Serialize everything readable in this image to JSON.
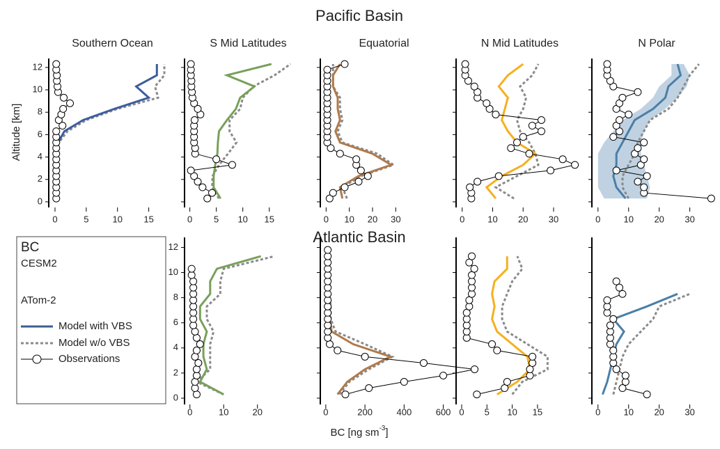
{
  "titles": {
    "top": "Pacific Basin",
    "bottom": "Atlantic Basin"
  },
  "y_label": "Altitude [km]",
  "x_label": {
    "text": "BC [ng sm",
    "sup": "-3",
    "close": "]"
  },
  "legend": {
    "heading": "BC",
    "model": "CESM2",
    "campaign": "ATom-2",
    "entries": [
      "Model with VBS",
      "Model w/o VBS",
      "Observations"
    ]
  },
  "colors": {
    "title": "#e3202b",
    "no_vbs": "#8a8a8a",
    "obs": "#000000",
    "legend_vbs": "#3a5f8f"
  },
  "obs_altitude": [
    0.3,
    0.8,
    1.3,
    1.8,
    2.3,
    2.8,
    3.3,
    3.8,
    4.3,
    4.8,
    5.3,
    5.8,
    6.3,
    6.8,
    7.3,
    7.8,
    8.3,
    8.8,
    9.3,
    9.8,
    10.3,
    10.8,
    11.3,
    11.8,
    12.3
  ],
  "model_altitude": [
    0.3,
    1.3,
    2.3,
    3.3,
    4.3,
    5.3,
    6.3,
    7.3,
    8.3,
    9.3,
    10.3,
    11.3,
    12.3
  ],
  "chart_data": [
    {
      "type": "line",
      "title": "Southern Ocean",
      "color": "#3b5da0",
      "xlim": [
        -1,
        18.5
      ],
      "xticks": [
        0,
        5,
        10,
        15
      ],
      "ylim": [
        -0.5,
        12.8
      ],
      "yticks": [
        0,
        2,
        4,
        6,
        8,
        10,
        12
      ],
      "ytick_labels": true,
      "model_vbs": [
        0.3,
        0.3,
        0.3,
        0.3,
        0.3,
        0.5,
        1.5,
        4.5,
        9.5,
        15,
        13,
        16.3,
        16.3
      ],
      "model_novbs": [
        0.3,
        0.3,
        0.3,
        0.3,
        0.3,
        0.6,
        2,
        5,
        10,
        16.5,
        16,
        17.5,
        17.5
      ],
      "observations": [
        0.2,
        0.2,
        0.2,
        0.2,
        0.2,
        0.2,
        0.2,
        0.2,
        0.2,
        0.2,
        0.2,
        0.2,
        0.2,
        1.2,
        0.6,
        1.0,
        1.3,
        2.4,
        1.4,
        0.5,
        0.4,
        0.3,
        0.3,
        0.2,
        0.2
      ]
    },
    {
      "type": "line",
      "title": "S Mid Latitudes",
      "color": "#78a05a",
      "xlim": [
        -1,
        22
      ],
      "xticks": [
        0,
        5,
        10,
        15
      ],
      "ylim": [
        -0.5,
        12.8
      ],
      "yticks": [
        0,
        2,
        4,
        6,
        8,
        10,
        12
      ],
      "ytick_labels": false,
      "model_vbs": [
        5.8,
        4.5,
        4.5,
        4.8,
        5.2,
        5.3,
        5.5,
        7,
        8.7,
        9.5,
        12.2,
        7,
        15.4
      ],
      "model_novbs": [
        5.5,
        4.2,
        4.3,
        5.5,
        7.2,
        8.8,
        7.5,
        7.5,
        9.5,
        10,
        12,
        16,
        19
      ],
      "observations": [
        3.3,
        4.2,
        2.4,
        1.5,
        0.8,
        0.2,
        8,
        5,
        1,
        1,
        0.8,
        0.8,
        0.8,
        0.8,
        0.9,
        2,
        1.5,
        0.8,
        0.5,
        0.4,
        0.3,
        0.3,
        0.2,
        0.2,
        0.2
      ]
    },
    {
      "type": "line",
      "title": "Equatorial",
      "color": "#b07a4a",
      "xlim": [
        -2.5,
        50
      ],
      "xticks": [
        0,
        10,
        20,
        30
      ],
      "ylim": [
        -0.5,
        12.8
      ],
      "yticks": [
        0,
        2,
        4,
        6,
        8,
        10,
        12
      ],
      "ytick_labels": false,
      "model_vbs": [
        7,
        6,
        14,
        28,
        20,
        6,
        4,
        6,
        5,
        5,
        3,
        3,
        6
      ],
      "model_novbs": [
        9,
        7,
        15,
        29,
        22,
        7,
        5,
        7,
        6,
        6,
        3,
        3,
        3
      ],
      "observations": [
        1.5,
        3,
        8,
        14,
        18,
        15,
        13,
        13,
        6,
        2,
        0.5,
        0.5,
        0.5,
        0.5,
        0.5,
        0.5,
        0.5,
        0.5,
        0.5,
        0.5,
        0.5,
        0.5,
        0.5,
        0.5,
        8
      ]
    },
    {
      "type": "line",
      "title": "N Mid Latitudes",
      "color": "#f5b01e",
      "xlim": [
        -2,
        38
      ],
      "xticks": [
        0,
        10,
        20,
        30
      ],
      "ylim": [
        -0.5,
        12.8
      ],
      "yticks": [
        0,
        2,
        4,
        6,
        8,
        10,
        12
      ],
      "ytick_labels": false,
      "model_vbs": [
        11,
        8,
        13,
        20,
        24,
        18,
        15,
        13,
        14,
        15,
        12,
        15,
        20
      ],
      "model_novbs": [
        17,
        11,
        18,
        25,
        24,
        22,
        19,
        18,
        20,
        21,
        19,
        23,
        25
      ],
      "observations": [
        3,
        3,
        2.5,
        5,
        12,
        29,
        37,
        33,
        22,
        16,
        18,
        20,
        26,
        23,
        26,
        11,
        9,
        8,
        5,
        5,
        4,
        2,
        1,
        1,
        1
      ]
    },
    {
      "type": "line",
      "title": "N Polar",
      "color": "#4a7fa8",
      "xlim": [
        -2,
        38.5
      ],
      "xticks": [
        0,
        10,
        20,
        30
      ],
      "ylim": [
        -0.5,
        12.8
      ],
      "yticks": [
        0,
        2,
        4,
        6,
        8,
        10,
        12
      ],
      "ytick_labels": false,
      "band": {
        "lower": [
          2,
          0,
          0,
          0,
          0,
          2,
          5,
          8,
          14,
          18,
          20,
          24,
          24
        ],
        "upper": [
          16,
          17,
          16,
          15,
          14,
          14,
          15,
          17,
          22,
          26,
          29,
          30,
          28
        ]
      },
      "model_vbs": [
        9,
        6,
        5,
        6,
        6,
        8,
        10,
        12,
        18,
        22,
        23,
        27,
        26
      ],
      "model_novbs": [
        10,
        8,
        8,
        10,
        12,
        13,
        15,
        17,
        23,
        26,
        28,
        30,
        33
      ],
      "observations": [
        37,
        15,
        15,
        13,
        16,
        6,
        14,
        15,
        12,
        13,
        15,
        5,
        7,
        6,
        7,
        10,
        6,
        7,
        8,
        13,
        5,
        4,
        3,
        3,
        3
      ]
    },
    {
      "type": "line",
      "color": "#78a05a",
      "xlim": [
        -1.6,
        34.5
      ],
      "xticks": [
        0,
        10,
        20
      ],
      "ylim": [
        -0.5,
        12.8
      ],
      "yticks": [
        0,
        2,
        4,
        6,
        8,
        10,
        12
      ],
      "ytick_labels": true,
      "model_vbs": [
        10,
        3,
        5,
        4,
        4,
        5,
        3,
        3,
        6,
        6,
        8,
        21,
        null
      ],
      "model_novbs": [
        10,
        2,
        6,
        6,
        6,
        7,
        5,
        5,
        9,
        9,
        10,
        25,
        null
      ],
      "observations": [
        2,
        1.5,
        1.5,
        2,
        2,
        2.5,
        1.5,
        2,
        3,
        2,
        1.5,
        1,
        1,
        1,
        1,
        1,
        1,
        1,
        1,
        0.5,
        0.5,
        null,
        null,
        null,
        null
      ]
    },
    {
      "type": "line",
      "color": "#b07a4a",
      "xlim": [
        -28,
        790
      ],
      "xticks": [
        0,
        200,
        400,
        600
      ],
      "ylim": [
        -0.5,
        12.8
      ],
      "yticks": [
        0,
        2,
        4,
        6,
        8,
        10,
        12
      ],
      "ytick_labels": false,
      "model_vbs": [
        60,
        110,
        200,
        330,
        140,
        30,
        20,
        20,
        15,
        15,
        15,
        15,
        null
      ],
      "model_novbs": [
        70,
        120,
        220,
        340,
        200,
        50,
        25,
        25,
        20,
        20,
        20,
        20,
        null
      ],
      "observations": [
        100,
        220,
        400,
        600,
        760,
        500,
        200,
        60,
        20,
        10,
        10,
        10,
        10,
        10,
        10,
        10,
        10,
        10,
        10,
        10,
        10,
        10,
        10,
        10,
        null
      ]
    },
    {
      "type": "line",
      "color": "#f5b01e",
      "xlim": [
        -1.1,
        23
      ],
      "xticks": [
        0,
        5,
        10,
        15
      ],
      "ylim": [
        -0.5,
        12.8
      ],
      "yticks": [
        0,
        2,
        4,
        6,
        8,
        10,
        12
      ],
      "ytick_labels": false,
      "model_vbs": [
        7,
        11,
        13.5,
        13,
        10,
        7,
        6,
        6.5,
        6,
        6.5,
        9,
        9,
        null
      ],
      "model_novbs": [
        10,
        12,
        17,
        17,
        13,
        9,
        8,
        8,
        9,
        10,
        12,
        11,
        null
      ],
      "observations": [
        3,
        8.5,
        9,
        13.5,
        13.5,
        14,
        14,
        7,
        6,
        1,
        1,
        1,
        1,
        1,
        1.5,
        1.5,
        2,
        2,
        2,
        2,
        2.5,
        1.5,
        2,
        null,
        null
      ]
    },
    {
      "type": "line",
      "color": "#4a7fa8",
      "xlim": [
        -2,
        38.5
      ],
      "xticks": [
        0,
        10,
        20,
        30
      ],
      "ylim": [
        -0.5,
        12.8
      ],
      "yticks": [
        0,
        2,
        4,
        6,
        8,
        10,
        12
      ],
      "ytick_labels": false,
      "model_vbs": [
        1.5,
        3,
        4,
        5,
        6,
        8.5,
        5,
        16,
        26,
        null,
        null,
        null,
        null
      ],
      "model_novbs": [
        5,
        6,
        7,
        8,
        10,
        14,
        18,
        20,
        30,
        null,
        null,
        null,
        null
      ],
      "observations": [
        16,
        8,
        9,
        9,
        6,
        5,
        5,
        5,
        4,
        4,
        4,
        4,
        5,
        3,
        3,
        3,
        8,
        7,
        6,
        null,
        null,
        null,
        null,
        null,
        null
      ]
    }
  ]
}
